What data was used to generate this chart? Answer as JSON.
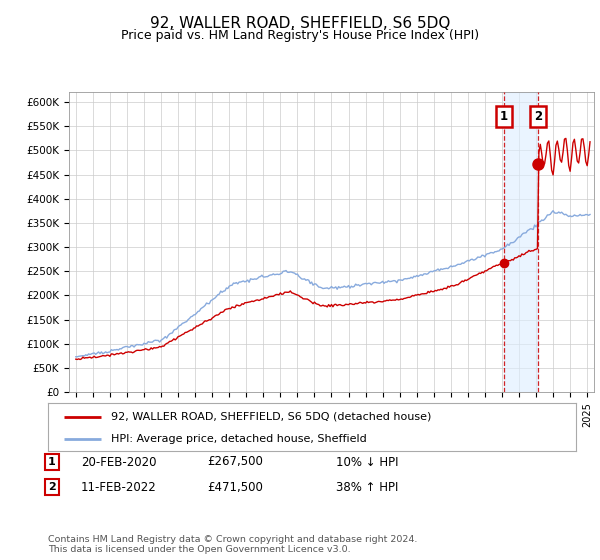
{
  "title": "92, WALLER ROAD, SHEFFIELD, S6 5DQ",
  "subtitle": "Price paid vs. HM Land Registry's House Price Index (HPI)",
  "ylim": [
    0,
    620000
  ],
  "yticks": [
    0,
    50000,
    100000,
    150000,
    200000,
    250000,
    300000,
    350000,
    400000,
    450000,
    500000,
    550000,
    600000
  ],
  "ytick_labels": [
    "£0",
    "£50K",
    "£100K",
    "£150K",
    "£200K",
    "£250K",
    "£300K",
    "£350K",
    "£400K",
    "£450K",
    "£500K",
    "£550K",
    "£600K"
  ],
  "xlim_start": 1994.6,
  "xlim_end": 2025.4,
  "transaction1_x": 2020.12,
  "transaction1_y": 267500,
  "transaction1_label": "1",
  "transaction2_x": 2022.1,
  "transaction2_y": 471500,
  "transaction2_label": "2",
  "legend_line1": "92, WALLER ROAD, SHEFFIELD, S6 5DQ (detached house)",
  "legend_line2": "HPI: Average price, detached house, Sheffield",
  "footer": "Contains HM Land Registry data © Crown copyright and database right 2024.\nThis data is licensed under the Open Government Licence v3.0.",
  "red_color": "#cc0000",
  "blue_color": "#88aadd",
  "shade_color": "#ddeeff",
  "background_color": "#ffffff",
  "title_fontsize": 11,
  "subtitle_fontsize": 9
}
